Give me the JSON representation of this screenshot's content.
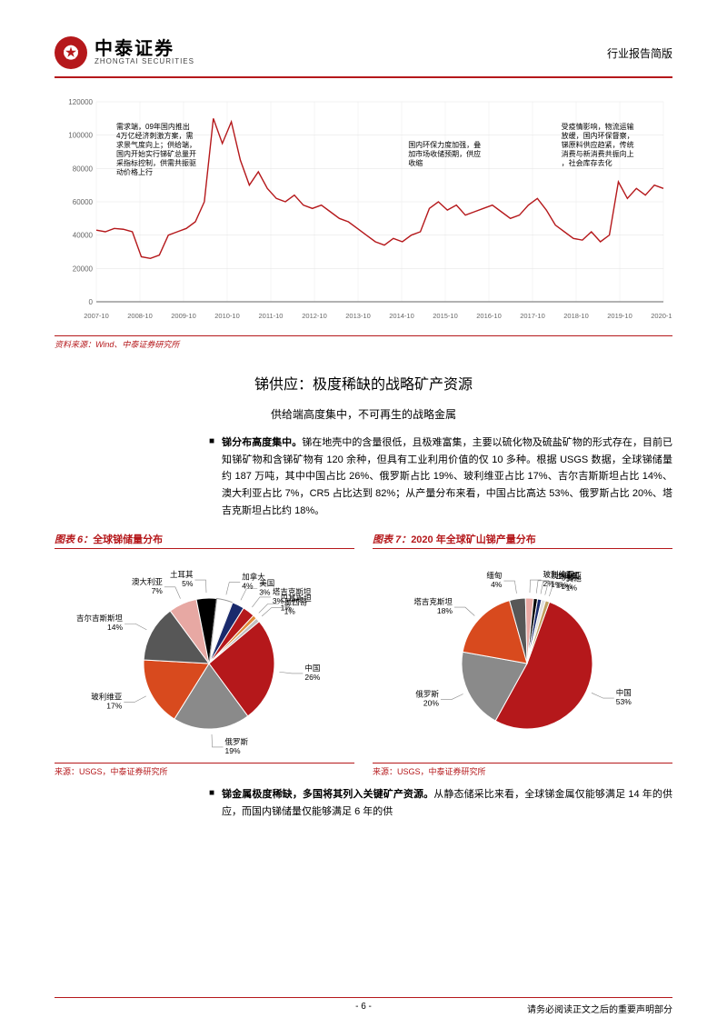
{
  "header": {
    "logo_zh": "中泰证券",
    "logo_en": "ZHONGTAI SECURITIES",
    "doc_type": "行业报告简版"
  },
  "line_chart": {
    "type": "line",
    "line_color": "#b5181b",
    "grid_color": "#e6e6e6",
    "axis_color": "#666666",
    "background_color": "#ffffff",
    "ylim": [
      0,
      120000
    ],
    "ytick_step": 20000,
    "yticks": [
      "0",
      "20000",
      "40000",
      "60000",
      "80000",
      "100000",
      "120000"
    ],
    "xticks": [
      "2007-10",
      "2008-10",
      "2009-10",
      "2010-10",
      "2011-10",
      "2012-10",
      "2013-10",
      "2014-10",
      "2015-10",
      "2016-10",
      "2017-10",
      "2018-10",
      "2019-10",
      "2020-10"
    ],
    "values": [
      43000,
      42000,
      44000,
      43500,
      42000,
      27000,
      26000,
      28000,
      40000,
      42000,
      44000,
      48000,
      60000,
      110000,
      95000,
      108000,
      85000,
      70000,
      78000,
      68000,
      62000,
      60000,
      64000,
      58000,
      56000,
      58000,
      54000,
      50000,
      48000,
      44000,
      40000,
      36000,
      34000,
      38000,
      36000,
      40000,
      42000,
      56000,
      60000,
      55000,
      58000,
      52000,
      54000,
      56000,
      58000,
      54000,
      50000,
      52000,
      58000,
      62000,
      55000,
      46000,
      42000,
      38000,
      37000,
      42000,
      36000,
      40000,
      72000,
      62000,
      68000,
      64000,
      70000,
      68000
    ],
    "annot1": "需求端，09年国内推出4万亿经济刺激方案，需求景气度向上；供给端，国内开始实行锑矿总量开采指标控制，供需共振驱动价格上行",
    "annot2": "国内环保力度加强，叠加市场收储预期，供应收缩",
    "annot3": "受疫情影响，物流运输放缓，国内环保督察，锑原料供应趋紧，传统消费与新消费共振向上，社会库存去化",
    "source": "资料来源：Wind、中泰证券研究所"
  },
  "section": {
    "title": "锑供应：极度稀缺的战略矿产资源",
    "subtitle": "供给端高度集中，不可再生的战略金属"
  },
  "bullet1": {
    "title": "锑分布高度集中。",
    "body": "锑在地壳中的含量很低，且极难富集，主要以硫化物及硫盐矿物的形式存在，目前已知锑矿物和含锑矿物有 120 余种，但具有工业利用价值的仅 10 多种。根据 USGS 数据，全球锑储量约 187 万吨，其中中国占比 26%、俄罗斯占比 19%、玻利维亚占比 17%、吉尔吉斯斯坦占比 14%、澳大利亚占比 7%，CR5 占比达到 82%；从产量分布来看，中国占比高达 53%、俄罗斯占比 20%、塔吉克斯坦占比约 18%。"
  },
  "pie1": {
    "title_prefix": "图表 6：",
    "title": "全球锑储量分布",
    "type": "pie",
    "slices": [
      {
        "label": "中国",
        "value": 26,
        "color": "#b5181b",
        "label_color": "#b5181b"
      },
      {
        "label": "俄罗斯",
        "value": 19,
        "color": "#8a8a8a",
        "label_color": "#000000"
      },
      {
        "label": "玻利维亚",
        "value": 17,
        "color": "#d84a1e",
        "label_color": "#b54a1e"
      },
      {
        "label": "吉尔吉斯斯坦",
        "value": 14,
        "color": "#575757",
        "label_color": "#000000"
      },
      {
        "label": "澳大利亚",
        "value": 7,
        "color": "#e7a8a3",
        "label_color": "#000000"
      },
      {
        "label": "土耳其",
        "value": 5,
        "color": "#000000",
        "label_color": "#000000"
      },
      {
        "label": "加拿大",
        "value": 4,
        "color": "#ffffff",
        "label_color": "#000000",
        "stroke": "#999"
      },
      {
        "label": "美国",
        "value": 3,
        "color": "#1a2a6c",
        "label_color": "#000000"
      },
      {
        "label": "塔吉克斯坦",
        "value": 3,
        "color": "#b5181b",
        "label_color": "#000000"
      },
      {
        "label": "巴基斯坦",
        "value": 1,
        "color": "#e08a35",
        "label_color": "#000000"
      },
      {
        "label": "墨西哥",
        "value": 1,
        "color": "#c0c0c0",
        "label_color": "#000000"
      }
    ],
    "source": "来源：USGS，中泰证券研究所"
  },
  "pie2": {
    "title_prefix": "图表 7：",
    "title": "2020 年全球矿山锑产量分布",
    "type": "pie",
    "slices": [
      {
        "label": "中国",
        "value": 53,
        "color": "#b5181b",
        "label_color": "#b5181b"
      },
      {
        "label": "俄罗斯",
        "value": 20,
        "color": "#8a8a8a",
        "label_color": "#000000"
      },
      {
        "label": "塔吉克斯坦",
        "value": 18,
        "color": "#d84a1e",
        "label_color": "#b54a1e"
      },
      {
        "label": "缅甸",
        "value": 4,
        "color": "#575757",
        "label_color": "#000000"
      },
      {
        "label": "玻利维亚",
        "value": 2,
        "color": "#e7a8a3",
        "label_color": "#000000"
      },
      {
        "label": "澳大利亚",
        "value": 1,
        "color": "#000000",
        "label_color": "#000000"
      },
      {
        "label": "土耳其",
        "value": 1,
        "color": "#1a2a6c",
        "label_color": "#000000"
      },
      {
        "label": "伊朗",
        "value": 1,
        "color": "#e0e0e0",
        "label_color": "#000000"
      },
      {
        "label": "其他",
        "value": 1,
        "color": "#c0a060",
        "label_color": "#000000"
      }
    ],
    "source": "来源：USGS，中泰证券研究所"
  },
  "bullet2": {
    "title": "锑金属极度稀缺，多国将其列入关键矿产资源。",
    "body": "从静态储采比来看，全球锑金属仅能够满足 14 年的供应，而国内锑储量仅能够满足 6 年的供"
  },
  "footer": {
    "page": "- 6 -",
    "disclaimer": "请务必阅读正文之后的重要声明部分"
  }
}
